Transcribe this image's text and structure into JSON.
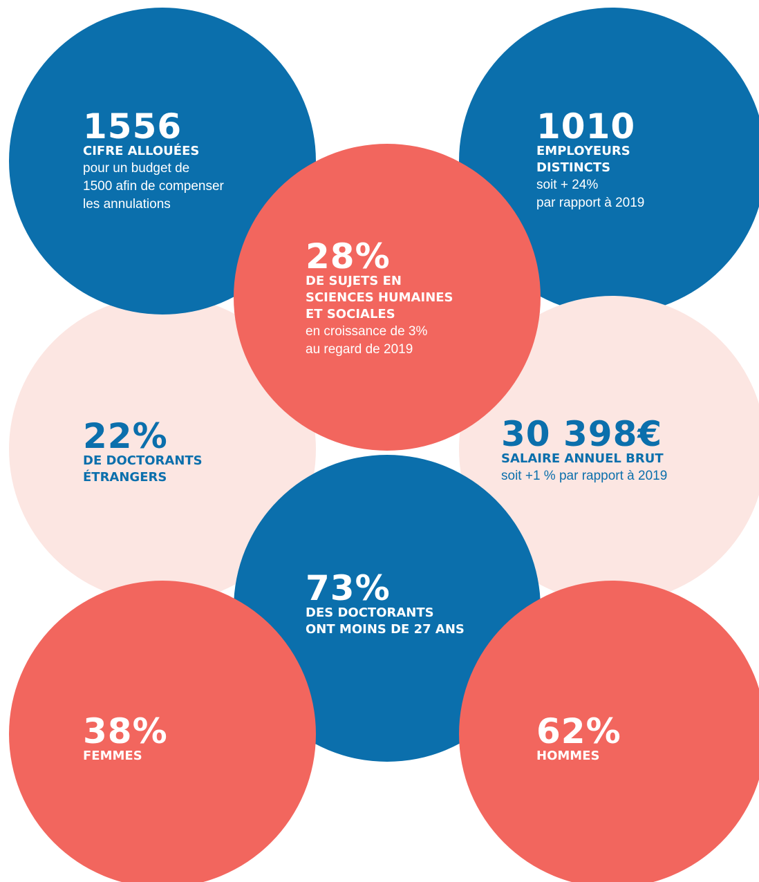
{
  "stats": [
    {
      "value": "1556",
      "heading": [
        "CIFRE ALLOUÉES"
      ],
      "text": [
        "pour un budget de",
        "1500 afin de compenser",
        "les annulations"
      ]
    },
    {
      "value": "1010",
      "heading": [
        "EMPLOYEURS",
        "DISTINCTS"
      ],
      "text": [
        "soit + 24%",
        "par rapport à 2019"
      ]
    },
    {
      "value": "28%",
      "heading": [
        "DE SUJETS EN",
        "SCIENCES HUMAINES",
        "ET SOCIALES"
      ],
      "text": [
        "en croissance de 3%",
        "au regard de 2019"
      ]
    },
    {
      "value": "22%",
      "heading": [
        "DE DOCTORANTS",
        "ÉTRANGERS"
      ],
      "text": []
    },
    {
      "value": "30 398€",
      "heading": [
        "SALAIRE ANNUEL BRUT"
      ],
      "text": [
        "soit +1 % par rapport à 2019"
      ]
    },
    {
      "value": "73%",
      "heading": [
        "DES DOCTORANTS",
        "ONT MOINS DE 27 ANS"
      ],
      "text": []
    },
    {
      "value": "38%",
      "heading": [
        "FEMMES"
      ],
      "text": []
    },
    {
      "value": "62%",
      "heading": [
        "HOMMES"
      ],
      "text": []
    }
  ]
}
